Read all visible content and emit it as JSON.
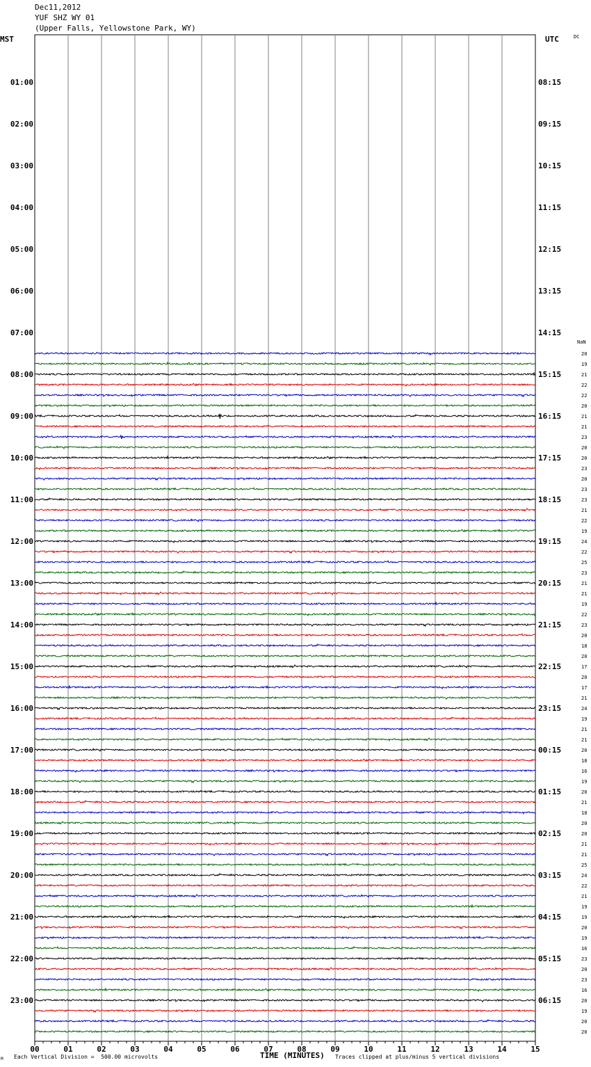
{
  "header": {
    "date": "Dec11,2012",
    "station": "YUF SHZ WY 01",
    "location": "(Upper Falls, Yellowstone Park, WY)"
  },
  "labels": {
    "left_tz": "MST",
    "right_tz": "UTC",
    "corner": "DC",
    "nan": "NaN"
  },
  "footer": {
    "scale": "Each Vertical Division =  500.00 microvolts",
    "xlabel": "TIME (MINUTES)",
    "clip_note": "Traces clipped at plus/minus 5 vertical divisions",
    "mark": "M"
  },
  "colors": {
    "black": "#000000",
    "red": "#e00000",
    "blue": "#0000cc",
    "green": "#006600",
    "grid": "#808080"
  },
  "chart_data": {
    "type": "line",
    "title": "YUF SHZ WY 01 (Upper Falls, Yellowstone Park, WY)",
    "xlabel": "TIME (MINUTES)",
    "xlim": [
      0,
      15
    ],
    "x_ticks": [
      "00",
      "01",
      "02",
      "03",
      "04",
      "05",
      "06",
      "07",
      "08",
      "09",
      "10",
      "11",
      "12",
      "13",
      "14",
      "15"
    ],
    "left_hour_labels": [
      "01:00",
      "02:00",
      "03:00",
      "04:00",
      "05:00",
      "06:00",
      "07:00",
      "08:00",
      "09:00",
      "10:00",
      "11:00",
      "12:00",
      "13:00",
      "14:00",
      "15:00",
      "16:00",
      "17:00",
      "18:00",
      "19:00",
      "20:00",
      "21:00",
      "22:00",
      "23:00"
    ],
    "right_hour_labels": [
      "08:15",
      "09:15",
      "10:15",
      "11:15",
      "12:15",
      "13:15",
      "14:15",
      "15:15",
      "16:15",
      "17:15",
      "18:15",
      "19:15",
      "20:15",
      "21:15",
      "22:15",
      "23:15",
      "00:15",
      "01:15",
      "02:15",
      "03:15",
      "04:15",
      "05:15",
      "06:15"
    ],
    "trace_colors_cycle": [
      "black",
      "red",
      "blue",
      "green"
    ],
    "first_trace_index": 30,
    "first_trace_color": "blue",
    "trace_count": 66,
    "right_values": [
      20,
      19,
      21,
      22,
      22,
      20,
      21,
      21,
      23,
      20,
      20,
      23,
      20,
      23,
      23,
      21,
      22,
      19,
      24,
      22,
      25,
      23,
      21,
      21,
      19,
      22,
      23,
      20,
      18,
      20,
      17,
      20,
      17,
      21,
      24,
      19,
      21,
      21,
      20,
      18,
      16,
      19,
      20,
      21,
      18,
      20,
      20,
      21,
      21,
      25,
      24,
      22,
      21,
      19,
      19,
      20,
      19,
      16,
      23,
      20,
      23,
      16,
      20,
      19,
      20,
      20
    ],
    "events": [
      {
        "trace_index": 36,
        "minute": 5.55,
        "amplitude": 3
      },
      {
        "trace_index": 38,
        "minute": 2.6,
        "amplitude": 2
      }
    ]
  }
}
